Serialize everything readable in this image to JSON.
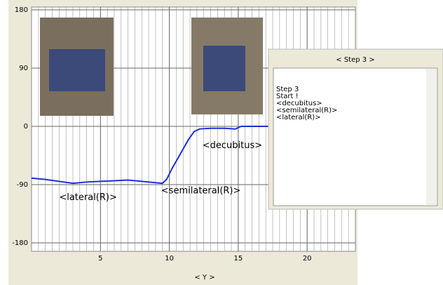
{
  "chart_data": {
    "type": "line",
    "x_label": "< Y >",
    "x": [
      0,
      1,
      2,
      3,
      4,
      5,
      6,
      7,
      8,
      9,
      9.5,
      9.8,
      10.2,
      10.6,
      11,
      11.4,
      11.8,
      12.2,
      13,
      14,
      14.8,
      15.2,
      16,
      17.2
    ],
    "series": [
      {
        "color": "#1f2fd8",
        "values": [
          -80,
          -82,
          -85,
          -88,
          -86,
          -85,
          -84,
          -83,
          -85,
          -87,
          -88,
          -82,
          -65,
          -50,
          -35,
          -20,
          -8,
          -4,
          -3,
          -3,
          -4,
          0,
          0,
          0
        ]
      }
    ],
    "xlim": [
      0,
      23.5
    ],
    "ylim": [
      -180,
      180
    ],
    "xticks": [
      5,
      10,
      15,
      20
    ],
    "yticks": [
      180,
      90,
      0,
      -90,
      -180
    ],
    "grid": true,
    "annotations": [
      {
        "text": "<lateral(R)>",
        "x": 2,
        "y": -110
      },
      {
        "text": "<semilateral(R)>",
        "x": 9.4,
        "y": -100
      },
      {
        "text": "<decubitus>",
        "x": 12.4,
        "y": -30
      }
    ]
  },
  "dialog": {
    "title": "< Step 3 >",
    "lines": [
      "Step 3",
      "Start !",
      "<decubitus>",
      "<semilateral(R)>",
      "<lateral(R)>"
    ]
  }
}
